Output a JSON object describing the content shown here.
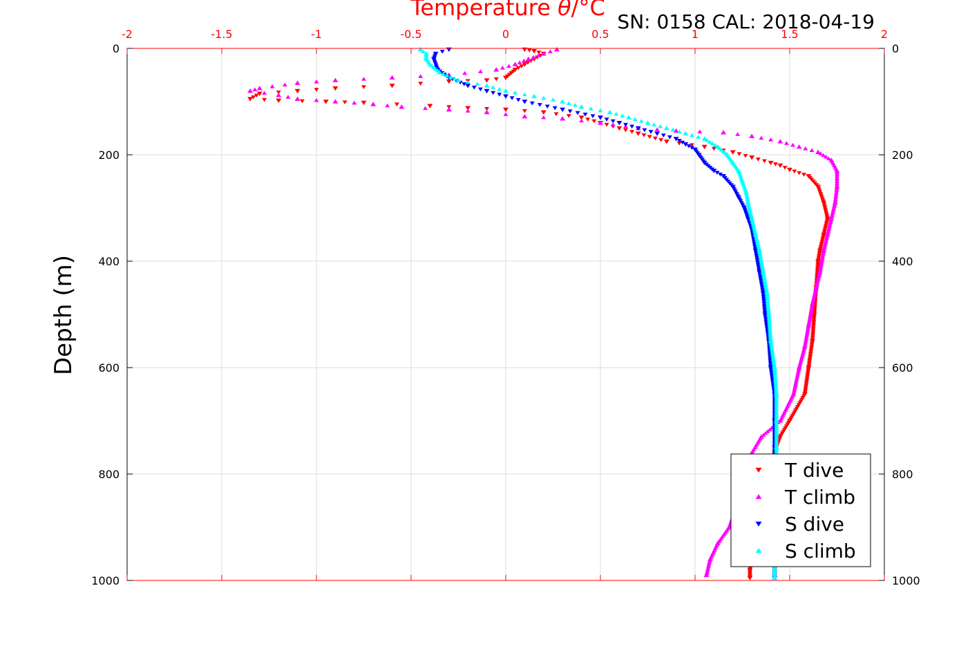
{
  "chart_data": {
    "type": "scatter",
    "title_prefix": "Temperature ",
    "title_theta": "θ",
    "title_suffix": "/°C",
    "subtitle": "SN: 0158  CAL: 2018-04-19",
    "ylabel": "Depth (m)",
    "xlim": [
      -2,
      2
    ],
    "ylim": [
      0,
      1000
    ],
    "y_reversed": true,
    "x_ticks": [
      "-2",
      "-1.5",
      "-1",
      "-0.5",
      "0",
      "0.5",
      "1",
      "1.5",
      "2"
    ],
    "y_ticks": [
      "0",
      "200",
      "400",
      "600",
      "800",
      "1000"
    ],
    "grid": true,
    "legend_position": "bottom-right",
    "colors": {
      "axis_top": "#ff0000",
      "grid": "#dcdcdc"
    },
    "series": [
      {
        "name": "T dive",
        "color": "#ff0000",
        "marker": "triangle-down",
        "points": [
          [
            0.1,
            2
          ],
          [
            0.15,
            5
          ],
          [
            0.2,
            10
          ],
          [
            0.15,
            20
          ],
          [
            0.1,
            30
          ],
          [
            0.05,
            40
          ],
          [
            0,
            55
          ],
          [
            -0.1,
            60
          ],
          [
            -0.3,
            62
          ],
          [
            -0.6,
            70
          ],
          [
            -0.9,
            75
          ],
          [
            -1.1,
            80
          ],
          [
            -1.3,
            85
          ],
          [
            -1.35,
            95
          ],
          [
            -1.2,
            98
          ],
          [
            -0.95,
            100
          ],
          [
            -0.75,
            102
          ],
          [
            -0.4,
            108
          ],
          [
            -0.2,
            112
          ],
          [
            0,
            115
          ],
          [
            0.2,
            120
          ],
          [
            0.4,
            130
          ],
          [
            0.5,
            140
          ],
          [
            0.6,
            150
          ],
          [
            0.7,
            160
          ],
          [
            0.85,
            175
          ],
          [
            1.05,
            185
          ],
          [
            1.2,
            195
          ],
          [
            1.3,
            205
          ],
          [
            1.4,
            215
          ],
          [
            1.45,
            220
          ],
          [
            1.5,
            228
          ],
          [
            1.6,
            240
          ],
          [
            1.65,
            260
          ],
          [
            1.68,
            290
          ],
          [
            1.7,
            320
          ],
          [
            1.68,
            350
          ],
          [
            1.66,
            380
          ],
          [
            1.65,
            400
          ],
          [
            1.64,
            450
          ],
          [
            1.63,
            500
          ],
          [
            1.62,
            550
          ],
          [
            1.6,
            600
          ],
          [
            1.58,
            650
          ],
          [
            1.5,
            700
          ],
          [
            1.45,
            730
          ],
          [
            1.42,
            760
          ],
          [
            1.41,
            790
          ],
          [
            1.4,
            820
          ],
          [
            1.38,
            860
          ],
          [
            1.35,
            900
          ],
          [
            1.32,
            930
          ],
          [
            1.3,
            960
          ],
          [
            1.29,
            980
          ],
          [
            1.29,
            995
          ]
        ]
      },
      {
        "name": "T climb",
        "color": "#ff00ff",
        "marker": "triangle-up",
        "points": [
          [
            0.27,
            2
          ],
          [
            0.2,
            10
          ],
          [
            0.12,
            20
          ],
          [
            0.05,
            30
          ],
          [
            -0.05,
            40
          ],
          [
            -0.3,
            50
          ],
          [
            -0.6,
            55
          ],
          [
            -0.9,
            60
          ],
          [
            -1.1,
            65
          ],
          [
            -1.3,
            75
          ],
          [
            -1.35,
            80
          ],
          [
            -1.2,
            88
          ],
          [
            -1.1,
            95
          ],
          [
            -0.9,
            100
          ],
          [
            -0.7,
            105
          ],
          [
            -0.55,
            110
          ],
          [
            -0.3,
            115
          ],
          [
            -0.1,
            120
          ],
          [
            0.1,
            128
          ],
          [
            0.3,
            132
          ],
          [
            0.5,
            140
          ],
          [
            0.7,
            150
          ],
          [
            0.9,
            155
          ],
          [
            1.15,
            158
          ],
          [
            1.3,
            165
          ],
          [
            1.45,
            175
          ],
          [
            1.55,
            185
          ],
          [
            1.65,
            195
          ],
          [
            1.72,
            210
          ],
          [
            1.75,
            230
          ],
          [
            1.75,
            260
          ],
          [
            1.74,
            290
          ],
          [
            1.72,
            320
          ],
          [
            1.7,
            350
          ],
          [
            1.68,
            380
          ],
          [
            1.66,
            420
          ],
          [
            1.64,
            450
          ],
          [
            1.62,
            480
          ],
          [
            1.6,
            520
          ],
          [
            1.58,
            560
          ],
          [
            1.55,
            600
          ],
          [
            1.52,
            650
          ],
          [
            1.45,
            700
          ],
          [
            1.35,
            730
          ],
          [
            1.3,
            760
          ],
          [
            1.27,
            790
          ],
          [
            1.25,
            820
          ],
          [
            1.22,
            860
          ],
          [
            1.18,
            900
          ],
          [
            1.12,
            930
          ],
          [
            1.08,
            960
          ],
          [
            1.06,
            990
          ]
        ]
      },
      {
        "name": "S dive",
        "color": "#0000ff",
        "marker": "triangle-down",
        "points": [
          [
            -0.3,
            2
          ],
          [
            -0.37,
            10
          ],
          [
            -0.38,
            20
          ],
          [
            -0.36,
            40
          ],
          [
            -0.3,
            55
          ],
          [
            -0.2,
            70
          ],
          [
            -0.1,
            80
          ],
          [
            0,
            90
          ],
          [
            0.1,
            100
          ],
          [
            0.3,
            115
          ],
          [
            0.5,
            130
          ],
          [
            0.6,
            140
          ],
          [
            0.7,
            150
          ],
          [
            0.8,
            160
          ],
          [
            0.9,
            170
          ],
          [
            0.95,
            180
          ],
          [
            1,
            190
          ],
          [
            1.02,
            200
          ],
          [
            1.05,
            215
          ],
          [
            1.1,
            230
          ],
          [
            1.15,
            240
          ],
          [
            1.2,
            260
          ],
          [
            1.23,
            280
          ],
          [
            1.26,
            300
          ],
          [
            1.28,
            320
          ],
          [
            1.3,
            340
          ],
          [
            1.32,
            380
          ],
          [
            1.34,
            420
          ],
          [
            1.36,
            460
          ],
          [
            1.37,
            500
          ],
          [
            1.39,
            550
          ],
          [
            1.4,
            600
          ],
          [
            1.42,
            650
          ],
          [
            1.42,
            700
          ],
          [
            1.42,
            750
          ],
          [
            1.42,
            800
          ],
          [
            1.42,
            850
          ],
          [
            1.42,
            900
          ],
          [
            1.42,
            950
          ],
          [
            1.42,
            995
          ]
        ]
      },
      {
        "name": "S climb",
        "color": "#00ffff",
        "marker": "triangle-up",
        "points": [
          [
            -0.45,
            2
          ],
          [
            -0.42,
            10
          ],
          [
            -0.42,
            20
          ],
          [
            -0.4,
            30
          ],
          [
            -0.35,
            45
          ],
          [
            -0.25,
            60
          ],
          [
            -0.1,
            70
          ],
          [
            0,
            80
          ],
          [
            0.15,
            90
          ],
          [
            0.3,
            100
          ],
          [
            0.4,
            110
          ],
          [
            0.55,
            120
          ],
          [
            0.65,
            130
          ],
          [
            0.75,
            140
          ],
          [
            0.85,
            150
          ],
          [
            0.95,
            160
          ],
          [
            1.05,
            170
          ],
          [
            1.12,
            185
          ],
          [
            1.17,
            200
          ],
          [
            1.2,
            215
          ],
          [
            1.23,
            230
          ],
          [
            1.25,
            250
          ],
          [
            1.27,
            270
          ],
          [
            1.28,
            290
          ],
          [
            1.3,
            320
          ],
          [
            1.32,
            350
          ],
          [
            1.34,
            380
          ],
          [
            1.36,
            420
          ],
          [
            1.38,
            460
          ],
          [
            1.39,
            500
          ],
          [
            1.4,
            550
          ],
          [
            1.42,
            600
          ],
          [
            1.43,
            650
          ],
          [
            1.43,
            700
          ],
          [
            1.43,
            750
          ],
          [
            1.43,
            800
          ],
          [
            1.43,
            850
          ],
          [
            1.42,
            900
          ],
          [
            1.42,
            950
          ],
          [
            1.42,
            995
          ]
        ]
      }
    ]
  }
}
